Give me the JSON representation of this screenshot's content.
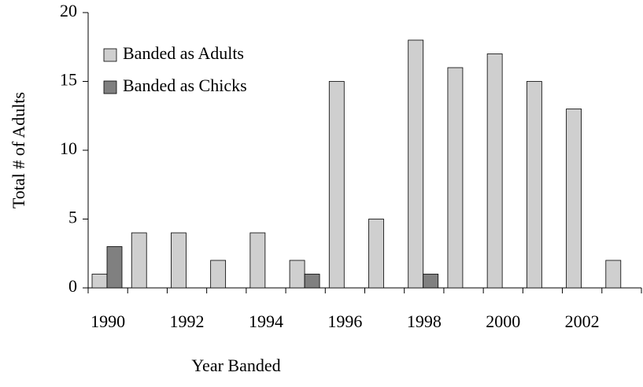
{
  "chart_data": {
    "type": "bar",
    "x_label": "Year Banded",
    "y_label": "Total # of Adults",
    "categories": [
      "1990",
      null,
      "1992",
      null,
      "1994",
      null,
      "1996",
      null,
      "1998",
      null,
      "2000",
      null,
      "2002",
      null
    ],
    "series": [
      {
        "name": "Banded as Adults",
        "color": "#cfcfcf",
        "values": [
          1,
          4,
          4,
          2,
          4,
          2,
          15,
          5,
          18,
          16,
          17,
          15,
          13,
          2
        ]
      },
      {
        "name": "Banded as Chicks",
        "color": "#808080",
        "values": [
          3,
          0,
          0,
          0,
          0,
          1,
          0,
          0,
          1,
          0,
          0,
          0,
          0,
          0
        ]
      }
    ],
    "ylim": [
      0,
      20
    ],
    "yticks": [
      0,
      5,
      10,
      15,
      20
    ],
    "legend": "upper-left"
  }
}
